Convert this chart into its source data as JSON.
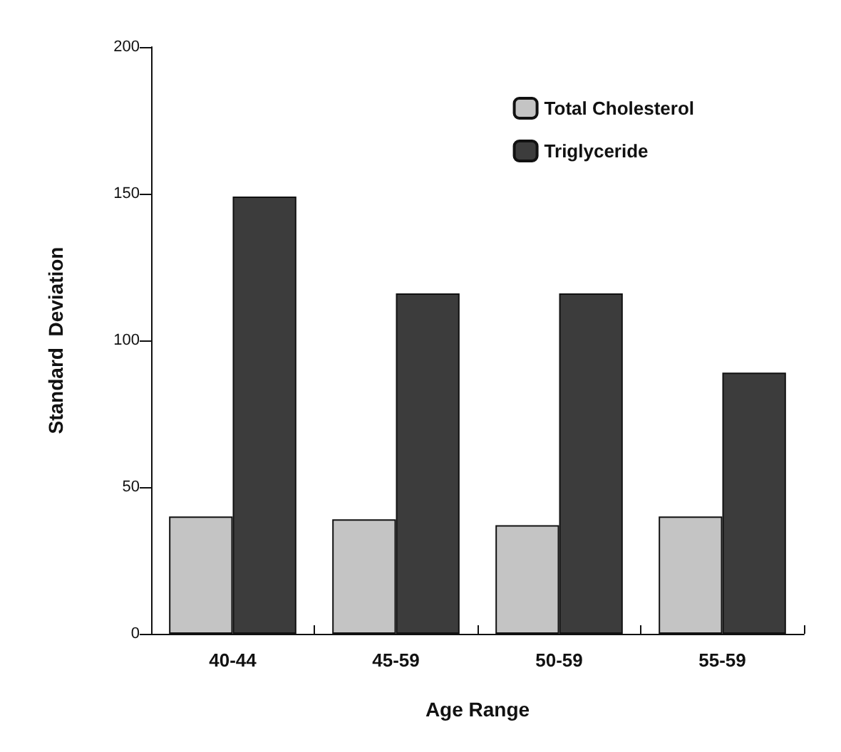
{
  "chart_data": {
    "type": "bar",
    "xlabel": "Age Range",
    "ylabel": "Standard  Deviation",
    "categories": [
      "40-44",
      "45-59",
      "50-59",
      "55-59"
    ],
    "series": [
      {
        "name": "Total Cholesterol",
        "color": "#c4c4c4",
        "values": [
          40,
          39,
          37,
          40
        ]
      },
      {
        "name": "Triglyceride",
        "color": "#3c3c3c",
        "values": [
          149,
          116,
          116,
          89
        ]
      }
    ],
    "ylim": [
      0,
      200
    ],
    "yticks": [
      0,
      50,
      100,
      150,
      200
    ],
    "grid": false,
    "legend": "top right"
  }
}
